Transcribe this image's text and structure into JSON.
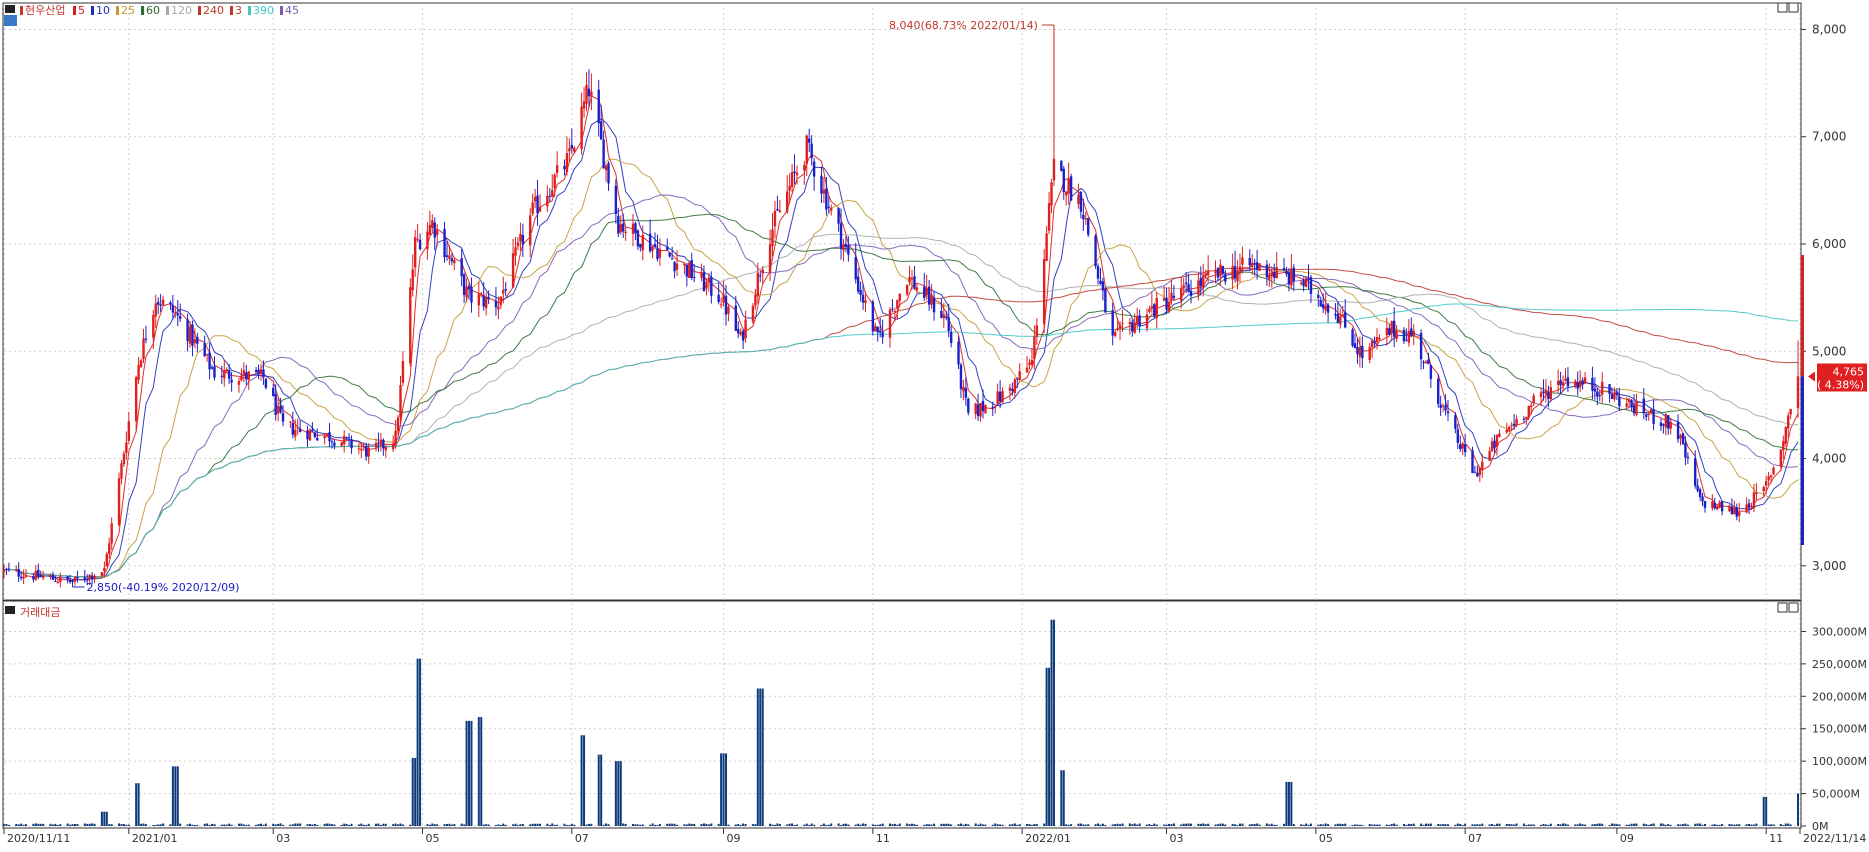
{
  "chart_data": {
    "type": "candlestick",
    "title": "현우산업",
    "price_legend": [
      {
        "label": "5",
        "color": "#d81b1b"
      },
      {
        "label": "10",
        "color": "#1d2fb8"
      },
      {
        "label": "25",
        "color": "#c49a32"
      },
      {
        "label": "60",
        "color": "#2e6b33"
      },
      {
        "label": "120",
        "color": "#a8a8a8"
      },
      {
        "label": "240",
        "color": "#c0392b"
      },
      {
        "label": "3",
        "color": "#c0392b"
      },
      {
        "label": "390",
        "color": "#3ec8c8"
      },
      {
        "label": "45",
        "color": "#7b5bb5"
      }
    ],
    "volume_title": "거래대금",
    "y_ticks": [
      "3,000",
      "4,000",
      "5,000",
      "6,000",
      "7,000",
      "8,000"
    ],
    "y_tick_values": [
      3000,
      4000,
      5000,
      6000,
      7000,
      8000
    ],
    "ylim": [
      2700,
      8200
    ],
    "volume_ticks": [
      "0M",
      "50,000M",
      "100,000M",
      "150,000M",
      "200,000M",
      "250,000M",
      "300,000M"
    ],
    "volume_tick_values": [
      0,
      50000,
      100000,
      150000,
      200000,
      250000,
      300000
    ],
    "x_ticks": [
      "2020/11/11",
      "2021/01",
      "03",
      "05",
      "07",
      "09",
      "11",
      "2022/01",
      "03",
      "05",
      "07",
      "09",
      "11",
      "2022/11/14"
    ],
    "high_annotation": "8,040(68.73% 2022/01/14)",
    "low_annotation": "2,850(-40.19% 2020/12/09)",
    "last_price": "4,765",
    "last_change": "( 4.38%)",
    "price_anchors": [
      [
        "2020-11-11",
        2950
      ],
      [
        "2020-12-09",
        2850
      ],
      [
        "2020-12-22",
        2960
      ],
      [
        "2021-01-05",
        4900
      ],
      [
        "2021-01-12",
        5500
      ],
      [
        "2021-01-20",
        5350
      ],
      [
        "2021-02-05",
        4800
      ],
      [
        "2021-02-25",
        4750
      ],
      [
        "2021-03-05",
        4300
      ],
      [
        "2021-03-25",
        4200
      ],
      [
        "2021-04-10",
        4050
      ],
      [
        "2021-04-20",
        4200
      ],
      [
        "2021-04-28",
        6000
      ],
      [
        "2021-05-05",
        6200
      ],
      [
        "2021-05-20",
        5500
      ],
      [
        "2021-06-01",
        5450
      ],
      [
        "2021-06-15",
        6300
      ],
      [
        "2021-06-30",
        6800
      ],
      [
        "2021-07-08",
        7450
      ],
      [
        "2021-07-20",
        6200
      ],
      [
        "2021-08-15",
        5800
      ],
      [
        "2021-08-31",
        5500
      ],
      [
        "2021-09-08",
        5100
      ],
      [
        "2021-09-20",
        6100
      ],
      [
        "2021-10-05",
        6900
      ],
      [
        "2021-10-20",
        6000
      ],
      [
        "2021-11-03",
        5100
      ],
      [
        "2021-11-15",
        5700
      ],
      [
        "2021-12-01",
        5300
      ],
      [
        "2021-12-10",
        4400
      ],
      [
        "2021-12-25",
        4600
      ],
      [
        "2022-01-05",
        4900
      ],
      [
        "2022-01-14",
        6700
      ],
      [
        "2022-01-25",
        6400
      ],
      [
        "2022-02-07",
        5100
      ],
      [
        "2022-02-20",
        5350
      ],
      [
        "2022-03-04",
        5500
      ],
      [
        "2022-03-20",
        5700
      ],
      [
        "2022-04-05",
        5800
      ],
      [
        "2022-04-25",
        5650
      ],
      [
        "2022-05-10",
        5350
      ],
      [
        "2022-05-20",
        4950
      ],
      [
        "2022-06-01",
        5200
      ],
      [
        "2022-06-10",
        5150
      ],
      [
        "2022-06-25",
        4300
      ],
      [
        "2022-07-05",
        3850
      ],
      [
        "2022-07-15",
        4200
      ],
      [
        "2022-07-28",
        4500
      ],
      [
        "2022-08-10",
        4750
      ],
      [
        "2022-08-25",
        4650
      ],
      [
        "2022-09-10",
        4450
      ],
      [
        "2022-09-25",
        4300
      ],
      [
        "2022-10-05",
        3600
      ],
      [
        "2022-10-20",
        3500
      ],
      [
        "2022-10-31",
        3700
      ],
      [
        "2022-11-07",
        4100
      ],
      [
        "2022-11-14",
        4765
      ]
    ],
    "volume_spikes": [
      [
        "2020-12-22",
        22000
      ],
      [
        "2021-01-04",
        66000
      ],
      [
        "2021-01-20",
        92000
      ],
      [
        "2021-04-28",
        105000
      ],
      [
        "2021-04-30",
        258000
      ],
      [
        "2021-05-20",
        162000
      ],
      [
        "2021-05-24",
        168000
      ],
      [
        "2021-07-05",
        140000
      ],
      [
        "2021-07-12",
        110000
      ],
      [
        "2021-07-20",
        100000
      ],
      [
        "2021-09-01",
        112000
      ],
      [
        "2021-09-16",
        212000
      ],
      [
        "2021-09-18",
        102000
      ],
      [
        "2022-01-12",
        244000
      ],
      [
        "2022-01-14",
        318000
      ],
      [
        "2022-01-17",
        86000
      ],
      [
        "2022-04-20",
        68000
      ],
      [
        "2022-10-31",
        45000
      ],
      [
        "2022-11-14",
        50000
      ]
    ]
  }
}
